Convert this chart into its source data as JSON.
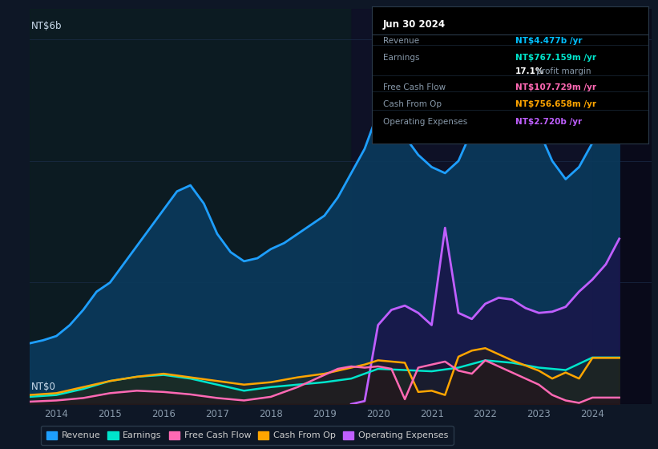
{
  "bg_color": "#0e1726",
  "plot_bg_color": "#0e1726",
  "ylim": [
    0,
    6.5
  ],
  "xlim": [
    2013.5,
    2025.1
  ],
  "xticks": [
    2014,
    2015,
    2016,
    2017,
    2018,
    2019,
    2020,
    2021,
    2022,
    2023,
    2024
  ],
  "grid_color": "#1e3050",
  "grid_alpha": 0.7,
  "info_box": {
    "title": "Jun 30 2024",
    "rows": [
      {
        "label": "Revenue",
        "value": "NT$4.477b /yr",
        "value_color": "#00bfff"
      },
      {
        "label": "Earnings",
        "value": "NT$767.159m /yr",
        "value_color": "#00e5cc"
      },
      {
        "label": "",
        "value": "17.1% profit margin",
        "value_color": "#ffffff",
        "bold_part": "17.1%"
      },
      {
        "label": "Free Cash Flow",
        "value": "NT$107.729m /yr",
        "value_color": "#ff69b4"
      },
      {
        "label": "Cash From Op",
        "value": "NT$756.658m /yr",
        "value_color": "#ffa500"
      },
      {
        "label": "Operating Expenses",
        "value": "NT$2.720b /yr",
        "value_color": "#bf5fff"
      }
    ]
  },
  "series": {
    "revenue": {
      "color": "#1e9fff",
      "fill_color": "#0a3a5c",
      "fill_alpha": 0.9,
      "label": "Revenue",
      "lw": 2.0,
      "x": [
        2013.5,
        2013.75,
        2014.0,
        2014.25,
        2014.5,
        2014.75,
        2015.0,
        2015.25,
        2015.5,
        2015.75,
        2016.0,
        2016.25,
        2016.5,
        2016.75,
        2017.0,
        2017.25,
        2017.5,
        2017.75,
        2018.0,
        2018.25,
        2018.5,
        2018.75,
        2019.0,
        2019.25,
        2019.5,
        2019.75,
        2020.0,
        2020.25,
        2020.5,
        2020.75,
        2021.0,
        2021.25,
        2021.5,
        2021.75,
        2022.0,
        2022.25,
        2022.5,
        2022.75,
        2023.0,
        2023.25,
        2023.5,
        2023.75,
        2024.0,
        2024.25,
        2024.5
      ],
      "y": [
        1.0,
        1.05,
        1.12,
        1.3,
        1.55,
        1.85,
        2.0,
        2.3,
        2.6,
        2.9,
        3.2,
        3.5,
        3.6,
        3.3,
        2.8,
        2.5,
        2.35,
        2.4,
        2.55,
        2.65,
        2.8,
        2.95,
        3.1,
        3.4,
        3.8,
        4.2,
        4.8,
        4.6,
        4.4,
        4.1,
        3.9,
        3.8,
        4.0,
        4.5,
        5.2,
        5.6,
        5.4,
        4.9,
        4.5,
        4.0,
        3.7,
        3.9,
        4.3,
        4.5,
        4.477
      ]
    },
    "earnings": {
      "color": "#00e5cc",
      "fill_color": "#0a3535",
      "fill_alpha": 0.55,
      "label": "Earnings",
      "lw": 1.8,
      "x": [
        2013.5,
        2014.0,
        2014.5,
        2015.0,
        2015.5,
        2016.0,
        2016.5,
        2017.0,
        2017.5,
        2018.0,
        2018.5,
        2019.0,
        2019.5,
        2020.0,
        2020.5,
        2021.0,
        2021.5,
        2022.0,
        2022.5,
        2023.0,
        2023.5,
        2024.0,
        2024.5
      ],
      "y": [
        0.12,
        0.15,
        0.25,
        0.38,
        0.45,
        0.48,
        0.42,
        0.32,
        0.22,
        0.28,
        0.32,
        0.36,
        0.42,
        0.58,
        0.56,
        0.54,
        0.6,
        0.72,
        0.68,
        0.6,
        0.56,
        0.767,
        0.767
      ]
    },
    "fcf": {
      "color": "#ff69b4",
      "fill_color": "#2a0a18",
      "fill_alpha": 0.4,
      "label": "Free Cash Flow",
      "lw": 1.8,
      "x": [
        2013.5,
        2014.0,
        2014.5,
        2015.0,
        2015.5,
        2016.0,
        2016.5,
        2017.0,
        2017.5,
        2018.0,
        2018.5,
        2019.0,
        2019.25,
        2019.5,
        2019.75,
        2020.0,
        2020.25,
        2020.5,
        2020.75,
        2021.0,
        2021.25,
        2021.5,
        2021.75,
        2022.0,
        2022.5,
        2023.0,
        2023.25,
        2023.5,
        2023.75,
        2024.0,
        2024.5
      ],
      "y": [
        0.04,
        0.06,
        0.1,
        0.18,
        0.22,
        0.2,
        0.16,
        0.1,
        0.06,
        0.12,
        0.28,
        0.48,
        0.58,
        0.62,
        0.6,
        0.62,
        0.58,
        0.08,
        0.6,
        0.65,
        0.7,
        0.55,
        0.5,
        0.72,
        0.52,
        0.32,
        0.15,
        0.06,
        0.02,
        0.107,
        0.107
      ]
    },
    "cashfromop": {
      "color": "#ffa500",
      "fill_color": "#302000",
      "fill_alpha": 0.4,
      "label": "Cash From Op",
      "lw": 1.8,
      "x": [
        2013.5,
        2014.0,
        2014.5,
        2015.0,
        2015.5,
        2016.0,
        2016.5,
        2017.0,
        2017.5,
        2018.0,
        2018.5,
        2019.0,
        2019.5,
        2019.75,
        2020.0,
        2020.5,
        2020.75,
        2021.0,
        2021.25,
        2021.5,
        2021.75,
        2022.0,
        2022.5,
        2023.0,
        2023.25,
        2023.5,
        2023.75,
        2024.0,
        2024.5
      ],
      "y": [
        0.15,
        0.18,
        0.28,
        0.38,
        0.45,
        0.5,
        0.44,
        0.38,
        0.32,
        0.36,
        0.44,
        0.5,
        0.6,
        0.65,
        0.72,
        0.68,
        0.2,
        0.22,
        0.15,
        0.78,
        0.88,
        0.92,
        0.72,
        0.55,
        0.42,
        0.52,
        0.42,
        0.76,
        0.76
      ]
    },
    "opex": {
      "color": "#bf5fff",
      "fill_color": "#200845",
      "fill_alpha": 0.6,
      "label": "Operating Expenses",
      "lw": 2.0,
      "x": [
        2019.5,
        2019.75,
        2020.0,
        2020.25,
        2020.5,
        2020.75,
        2021.0,
        2021.25,
        2021.5,
        2021.75,
        2022.0,
        2022.25,
        2022.5,
        2022.75,
        2023.0,
        2023.25,
        2023.5,
        2023.75,
        2024.0,
        2024.25,
        2024.5
      ],
      "y": [
        0.0,
        0.05,
        1.3,
        1.55,
        1.62,
        1.5,
        1.3,
        2.9,
        1.5,
        1.4,
        1.65,
        1.75,
        1.72,
        1.58,
        1.5,
        1.52,
        1.6,
        1.85,
        2.05,
        2.3,
        2.72
      ]
    }
  },
  "shaded_left": {
    "x_start": 2013.5,
    "x_end": 2019.5,
    "color": "#0a2a18",
    "alpha": 0.25
  },
  "shaded_right": {
    "x_start": 2019.5,
    "x_end": 2025.1,
    "color": "#100828",
    "alpha": 0.35
  },
  "shaded_far_right": {
    "x_start": 2024.0,
    "x_end": 2025.1,
    "color": "#050510",
    "alpha": 0.5
  },
  "legend": [
    {
      "label": "Revenue",
      "color": "#1e9fff"
    },
    {
      "label": "Earnings",
      "color": "#00e5cc"
    },
    {
      "label": "Free Cash Flow",
      "color": "#ff69b4"
    },
    {
      "label": "Cash From Op",
      "color": "#ffa500"
    },
    {
      "label": "Operating Expenses",
      "color": "#bf5fff"
    }
  ]
}
